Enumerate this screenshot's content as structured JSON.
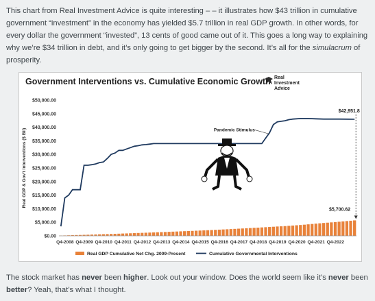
{
  "intro": {
    "p1": "This chart from Real Investment Advice is quite interesting – – it illustrates how $43 trillion in cumulative government “investment” in the economy has yielded $5.7 trillion in real GDP growth. In other words, for every dollar the government “invested”, 13 cents of good came out of it. This goes a long way to explaining why we’re $34 trillion in debt, and it’s only going to get bigger by the second. It’s all for the ",
    "emph": "simulacrum",
    "p2": " of prosperity."
  },
  "outro": {
    "a": "The stock market has ",
    "b1": "never",
    "c": " been ",
    "b2": "higher",
    "d": ". Look out your window. Does the world seem like it’s ",
    "b3": "never",
    "e": " been ",
    "b4": "better",
    "f": "? Yeah, that’s what I thought."
  },
  "logo": {
    "line1": "Real",
    "line2": "Investment",
    "line3": "Advice",
    "icon": "eagle-icon"
  },
  "colors": {
    "line": "#1f3a5f",
    "bars": "#e8823a",
    "arrow": "#333333"
  },
  "chart_data": {
    "type": "bar+line",
    "title": "Government Interventions vs. Cumulative Economic Growth",
    "ylabel": "Real GDP & Gov't Interventions ($ Bil)",
    "ylim": [
      0,
      50000
    ],
    "yticks": [
      "$0.00",
      "$5,000.00",
      "$10,000.00",
      "$15,000.00",
      "$20,000.00",
      "$25,000.00",
      "$30,000.00",
      "$35,000.00",
      "$40,000.00",
      "$45,000.00",
      "$50,000.00"
    ],
    "xticks": [
      "Q4-2008",
      "Q4-2009",
      "Q4-2010",
      "Q4-2011",
      "Q4-2012",
      "Q4-2013",
      "Q4-2014",
      "Q4-2015",
      "Q4-2016",
      "Q4-2017",
      "Q4-2018",
      "Q4-2019",
      "Q4-2020",
      "Q4-2021",
      "Q4-2022"
    ],
    "series": [
      {
        "name": "Real GDP Cumulative Net Chg. 2009-Present",
        "kind": "bar",
        "values": [
          100,
          150,
          200,
          250,
          300,
          330,
          380,
          420,
          480,
          520,
          570,
          620,
          660,
          710,
          760,
          800,
          860,
          900,
          950,
          1000,
          1060,
          1110,
          1160,
          1210,
          1270,
          1330,
          1380,
          1430,
          1490,
          1550,
          1600,
          1660,
          1720,
          1780,
          1830,
          1900,
          1960,
          2020,
          2080,
          2150,
          2220,
          2290,
          2360,
          2430,
          2500,
          2570,
          2650,
          2720,
          2800,
          2880,
          2960,
          3030,
          3110,
          3190,
          3270,
          3360,
          3450,
          3520,
          3600,
          3700,
          3800,
          3900,
          4000,
          4120,
          4250,
          4380,
          4500,
          4620,
          4750,
          4860,
          4970,
          5080,
          5200,
          5320,
          5450,
          5570,
          5700.62
        ]
      },
      {
        "name": "Cumulative Governmental Interventions",
        "kind": "line",
        "points": [
          [
            0,
            3500
          ],
          [
            1,
            14000
          ],
          [
            2,
            15000
          ],
          [
            3,
            17000
          ],
          [
            4,
            17000
          ],
          [
            5,
            17000
          ],
          [
            6,
            26000
          ],
          [
            7,
            26000
          ],
          [
            8,
            26200
          ],
          [
            9,
            26500
          ],
          [
            10,
            27000
          ],
          [
            11,
            27200
          ],
          [
            12,
            28500
          ],
          [
            13,
            30000
          ],
          [
            14,
            30500
          ],
          [
            15,
            31500
          ],
          [
            16,
            31500
          ],
          [
            17,
            32000
          ],
          [
            18,
            32500
          ],
          [
            19,
            33000
          ],
          [
            20,
            33200
          ],
          [
            21,
            33500
          ],
          [
            22,
            33600
          ],
          [
            23,
            33800
          ],
          [
            24,
            34000
          ],
          [
            26,
            34000
          ],
          [
            30,
            34000
          ],
          [
            36,
            34000
          ],
          [
            42,
            34000
          ],
          [
            48,
            34000
          ],
          [
            52,
            34000
          ],
          [
            54,
            38000
          ],
          [
            55,
            41000
          ],
          [
            56,
            42000
          ],
          [
            57,
            42200
          ],
          [
            58,
            42400
          ],
          [
            59,
            42800
          ],
          [
            60,
            43000
          ],
          [
            62,
            43200
          ],
          [
            64,
            43200
          ],
          [
            66,
            43100
          ],
          [
            68,
            43000
          ],
          [
            72,
            43000
          ],
          [
            76,
            42951.8
          ]
        ]
      }
    ],
    "annotations": [
      {
        "text": "$42,951.8"
      },
      {
        "text": "Pandemic Stimulus"
      },
      {
        "text": "$5,700.62"
      }
    ]
  }
}
